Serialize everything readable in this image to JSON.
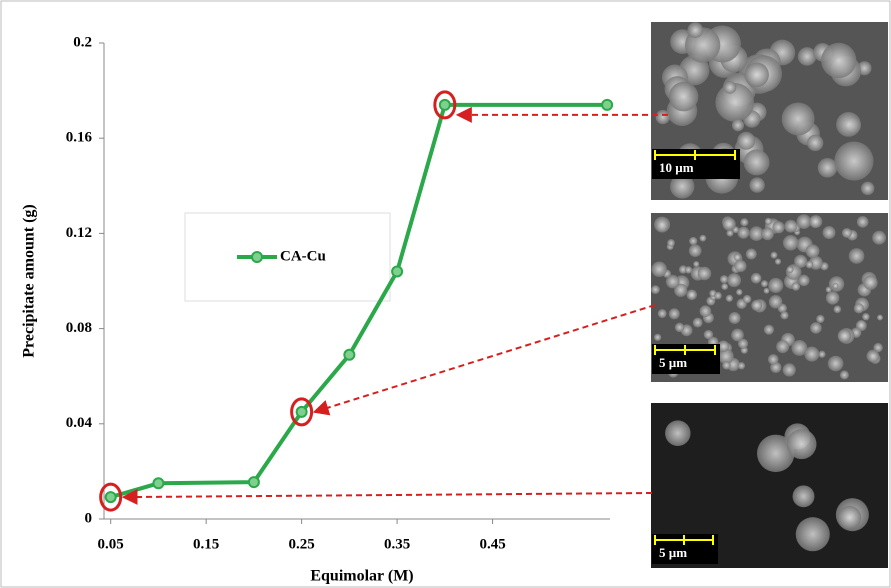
{
  "chart_data": {
    "type": "line",
    "x_label": "Equimolar  (M)",
    "y_label": "Precipitate amount (g)",
    "x": [
      0.05,
      0.1,
      0.2,
      0.25,
      0.3,
      0.35,
      0.4,
      0.57
    ],
    "series": [
      {
        "name": "CA-Cu",
        "color": "#2aa84a",
        "values": [
          0.0092,
          0.015,
          0.0155,
          0.045,
          0.069,
          0.104,
          0.174,
          0.174
        ]
      }
    ],
    "xlim": [
      0.043,
      0.573
    ],
    "xticks": [
      0.05,
      0.15,
      0.25,
      0.35,
      0.45
    ],
    "ylim": [
      0,
      0.2
    ],
    "yticks": [
      0,
      0.04,
      0.08,
      0.12,
      0.16,
      0.2
    ],
    "images": [
      {
        "scale_label": "10 µm"
      },
      {
        "scale_label": "5 µm"
      },
      {
        "scale_label": "5 µm"
      }
    ]
  }
}
